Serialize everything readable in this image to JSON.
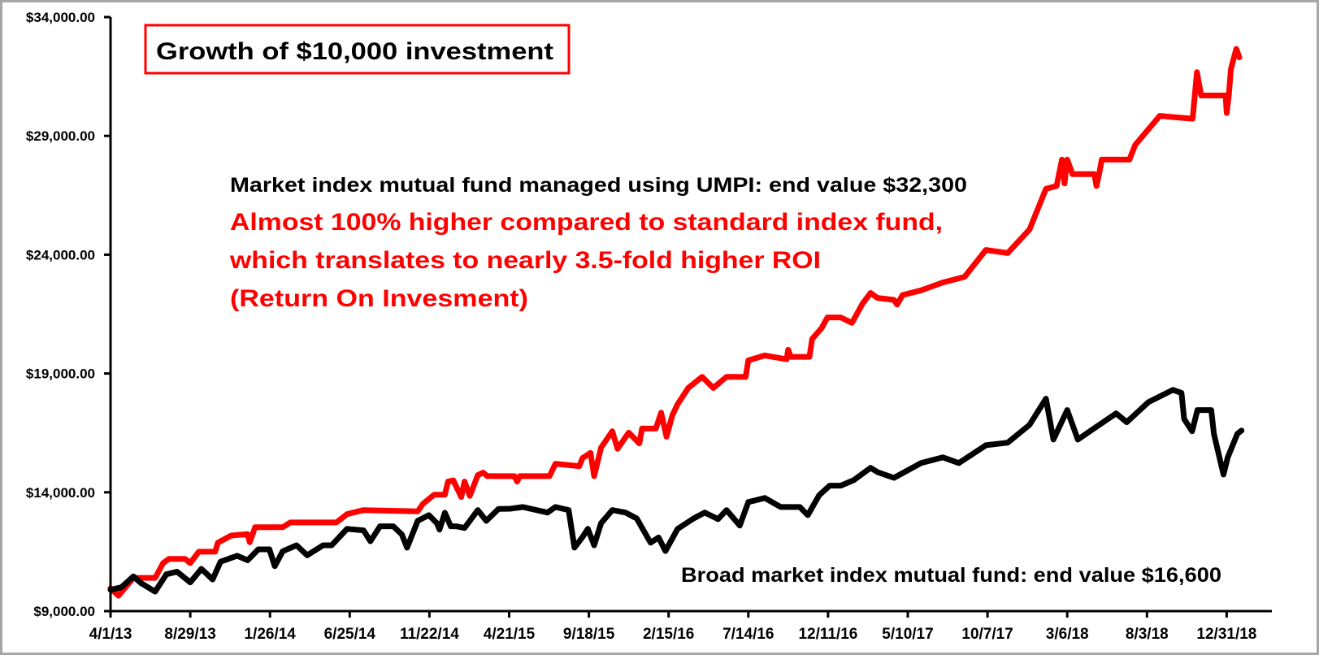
{
  "chart_data": {
    "type": "line",
    "title": "Growth of $10,000 investment",
    "xlabel": "",
    "ylabel": "",
    "x_unit": "days since 4/1/13",
    "x_tick_labels": [
      "4/1/13",
      "8/29/13",
      "1/26/14",
      "6/25/14",
      "11/22/14",
      "4/21/15",
      "9/18/15",
      "2/15/16",
      "7/14/16",
      "12/11/16",
      "5/10/17",
      "10/7/17",
      "3/6/18",
      "8/3/18",
      "12/31/18"
    ],
    "x_tick_step_days": 150,
    "xlim_days": [
      0,
      2185
    ],
    "y_tick_values": [
      9000,
      14000,
      19000,
      24000,
      29000,
      34000
    ],
    "y_tick_labels": [
      "$9,000.00",
      "$14,000.00",
      "$19,000.00",
      "$24,000.00",
      "$29,000.00",
      "$34,000.00"
    ],
    "ylim": [
      9000,
      34000
    ],
    "grid": false,
    "annotations": {
      "umpi_label": "Market index mutual fund managed using UMPI: end value $32,300",
      "red_line1": "Almost 100% higher compared to standard index fund,",
      "red_line2": "which translates to nearly 3.5-fold higher ROI",
      "red_line3": "(Return On Invesment)",
      "broad_label": "Broad market index mutual fund: end value $16,600"
    },
    "series": [
      {
        "name": "Market index mutual fund managed using UMPI",
        "color": "#ff0000",
        "points": [
          [
            0,
            9960
          ],
          [
            15,
            9650
          ],
          [
            43,
            10400
          ],
          [
            84,
            10400
          ],
          [
            99,
            11020
          ],
          [
            110,
            11200
          ],
          [
            140,
            11200
          ],
          [
            150,
            11020
          ],
          [
            166,
            11500
          ],
          [
            197,
            11500
          ],
          [
            202,
            11880
          ],
          [
            227,
            12180
          ],
          [
            258,
            12240
          ],
          [
            262,
            11900
          ],
          [
            272,
            12530
          ],
          [
            324,
            12530
          ],
          [
            338,
            12730
          ],
          [
            425,
            12730
          ],
          [
            445,
            13080
          ],
          [
            476,
            13250
          ],
          [
            578,
            13200
          ],
          [
            588,
            13520
          ],
          [
            609,
            13900
          ],
          [
            629,
            13900
          ],
          [
            635,
            14450
          ],
          [
            645,
            14500
          ],
          [
            660,
            13800
          ],
          [
            666,
            14450
          ],
          [
            676,
            13850
          ],
          [
            691,
            14720
          ],
          [
            701,
            14830
          ],
          [
            709,
            14680
          ],
          [
            760,
            14680
          ],
          [
            765,
            14450
          ],
          [
            770,
            14680
          ],
          [
            826,
            14680
          ],
          [
            837,
            15200
          ],
          [
            882,
            15100
          ],
          [
            888,
            15440
          ],
          [
            903,
            15660
          ],
          [
            910,
            14680
          ],
          [
            923,
            15880
          ],
          [
            944,
            16570
          ],
          [
            954,
            15830
          ],
          [
            975,
            16510
          ],
          [
            995,
            16060
          ],
          [
            1000,
            16680
          ],
          [
            1026,
            16680
          ],
          [
            1036,
            17350
          ],
          [
            1046,
            16340
          ],
          [
            1057,
            17240
          ],
          [
            1067,
            17710
          ],
          [
            1087,
            18390
          ],
          [
            1113,
            18860
          ],
          [
            1134,
            18390
          ],
          [
            1159,
            18860
          ],
          [
            1195,
            18860
          ],
          [
            1200,
            19550
          ],
          [
            1231,
            19760
          ],
          [
            1272,
            19600
          ],
          [
            1275,
            20000
          ],
          [
            1280,
            19700
          ],
          [
            1315,
            19700
          ],
          [
            1320,
            20450
          ],
          [
            1338,
            20920
          ],
          [
            1349,
            21360
          ],
          [
            1374,
            21360
          ],
          [
            1395,
            21130
          ],
          [
            1415,
            21940
          ],
          [
            1430,
            22390
          ],
          [
            1443,
            22180
          ],
          [
            1474,
            22100
          ],
          [
            1480,
            21900
          ],
          [
            1490,
            22300
          ],
          [
            1525,
            22500
          ],
          [
            1566,
            22830
          ],
          [
            1607,
            23070
          ],
          [
            1647,
            24200
          ],
          [
            1688,
            24070
          ],
          [
            1729,
            25060
          ],
          [
            1760,
            26770
          ],
          [
            1780,
            26890
          ],
          [
            1790,
            28000
          ],
          [
            1795,
            27000
          ],
          [
            1800,
            28000
          ],
          [
            1810,
            27390
          ],
          [
            1851,
            27390
          ],
          [
            1855,
            26890
          ],
          [
            1860,
            27390
          ],
          [
            1865,
            28000
          ],
          [
            1917,
            28000
          ],
          [
            1928,
            28620
          ],
          [
            1974,
            29840
          ],
          [
            2036,
            29720
          ],
          [
            2044,
            31680
          ],
          [
            2052,
            30700
          ],
          [
            2098,
            30700
          ],
          [
            2100,
            29960
          ],
          [
            2104,
            30700
          ],
          [
            2108,
            31810
          ],
          [
            2118,
            32660
          ],
          [
            2124,
            32300
          ]
        ]
      },
      {
        "name": "Broad market index mutual fund",
        "color": "#000000",
        "points": [
          [
            0,
            9900
          ],
          [
            20,
            10000
          ],
          [
            43,
            10460
          ],
          [
            58,
            10170
          ],
          [
            84,
            9820
          ],
          [
            105,
            10550
          ],
          [
            125,
            10660
          ],
          [
            150,
            10210
          ],
          [
            171,
            10780
          ],
          [
            192,
            10330
          ],
          [
            207,
            11080
          ],
          [
            238,
            11330
          ],
          [
            258,
            11140
          ],
          [
            278,
            11600
          ],
          [
            299,
            11600
          ],
          [
            309,
            10890
          ],
          [
            324,
            11520
          ],
          [
            350,
            11770
          ],
          [
            370,
            11350
          ],
          [
            400,
            11770
          ],
          [
            416,
            11770
          ],
          [
            445,
            12460
          ],
          [
            476,
            12400
          ],
          [
            489,
            11940
          ],
          [
            507,
            12570
          ],
          [
            532,
            12570
          ],
          [
            548,
            12230
          ],
          [
            558,
            11670
          ],
          [
            578,
            12800
          ],
          [
            599,
            13040
          ],
          [
            614,
            12700
          ],
          [
            619,
            12430
          ],
          [
            629,
            13140
          ],
          [
            640,
            12570
          ],
          [
            650,
            12570
          ],
          [
            666,
            12500
          ],
          [
            691,
            13250
          ],
          [
            707,
            12800
          ],
          [
            730,
            13300
          ],
          [
            752,
            13310
          ],
          [
            776,
            13380
          ],
          [
            822,
            13150
          ],
          [
            837,
            13380
          ],
          [
            862,
            13250
          ],
          [
            873,
            11670
          ],
          [
            888,
            12120
          ],
          [
            898,
            12460
          ],
          [
            910,
            11770
          ],
          [
            923,
            12700
          ],
          [
            944,
            13250
          ],
          [
            969,
            13150
          ],
          [
            990,
            12900
          ],
          [
            1016,
            11880
          ],
          [
            1031,
            12100
          ],
          [
            1044,
            11530
          ],
          [
            1067,
            12460
          ],
          [
            1097,
            12900
          ],
          [
            1118,
            13150
          ],
          [
            1143,
            12870
          ],
          [
            1159,
            13250
          ],
          [
            1184,
            12600
          ],
          [
            1200,
            13590
          ],
          [
            1231,
            13760
          ],
          [
            1261,
            13380
          ],
          [
            1297,
            13380
          ],
          [
            1312,
            13040
          ],
          [
            1333,
            13870
          ],
          [
            1353,
            14280
          ],
          [
            1374,
            14280
          ],
          [
            1399,
            14520
          ],
          [
            1430,
            15030
          ],
          [
            1443,
            14850
          ],
          [
            1474,
            14610
          ],
          [
            1525,
            15230
          ],
          [
            1566,
            15470
          ],
          [
            1596,
            15230
          ],
          [
            1647,
            15980
          ],
          [
            1688,
            16090
          ],
          [
            1729,
            16840
          ],
          [
            1760,
            17940
          ],
          [
            1774,
            16220
          ],
          [
            1800,
            17460
          ],
          [
            1820,
            16220
          ],
          [
            1851,
            16700
          ],
          [
            1892,
            17320
          ],
          [
            1912,
            16950
          ],
          [
            1953,
            17800
          ],
          [
            1999,
            18310
          ],
          [
            2015,
            18180
          ],
          [
            2020,
            17080
          ],
          [
            2035,
            16570
          ],
          [
            2045,
            17460
          ],
          [
            2071,
            17460
          ],
          [
            2076,
            16460
          ],
          [
            2094,
            14750
          ],
          [
            2102,
            15470
          ],
          [
            2120,
            16460
          ],
          [
            2128,
            16600
          ]
        ]
      }
    ]
  }
}
